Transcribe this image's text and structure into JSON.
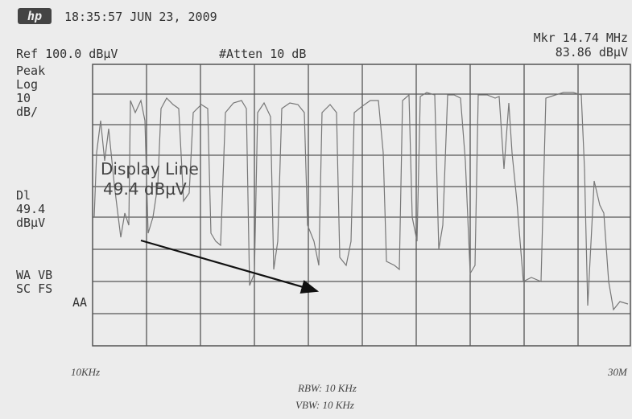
{
  "header": {
    "logo": "hp",
    "timestamp": "18:35:57 JUN 23, 2009",
    "ref": "Ref 100.0 dBµV",
    "atten": "#Atten 10 dB",
    "marker": {
      "freq": "Mkr 14.74 MHz",
      "level": "83.86 dBµV"
    }
  },
  "left_panel": {
    "mode": [
      "Peak",
      "Log",
      "10",
      "dB/"
    ],
    "display_line": [
      "Dl",
      "49.4",
      "dBµV"
    ],
    "flags": [
      "WA VB",
      "SC FS",
      "AA"
    ]
  },
  "annotation": {
    "line1": "Display Line",
    "line2": "49.4 dBµV"
  },
  "footer": {
    "start": "10KHz",
    "stop": "30M",
    "rbw": "RBW: 10 KHz",
    "vbw": "VBW: 10 KHz"
  }
}
